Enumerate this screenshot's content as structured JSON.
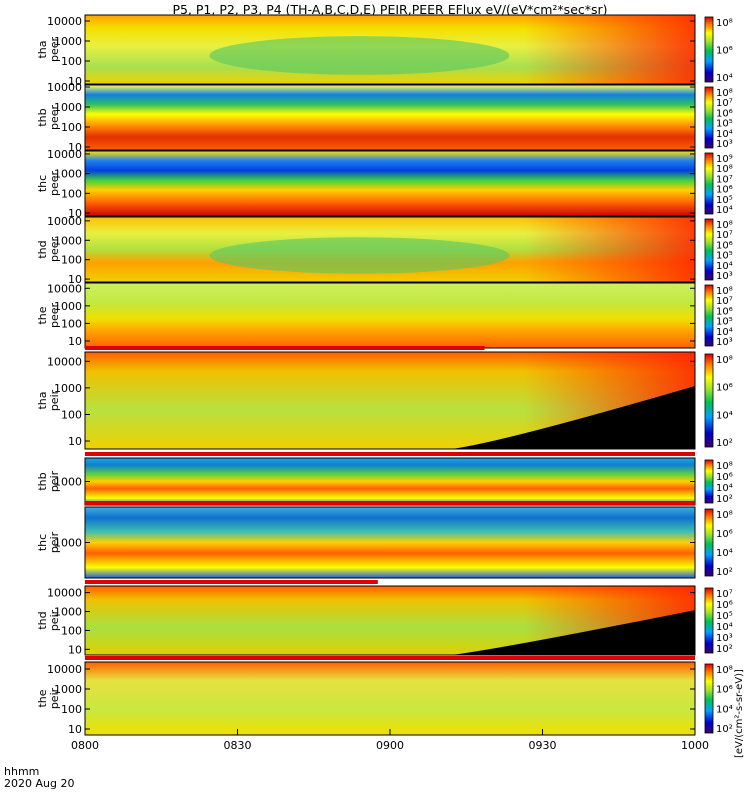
{
  "chart_data": {
    "type": "heatmap",
    "title": "P5, P1, P2, P3, P4 (TH-A,B,C,D,E) PEIR,PEER EFlux eV/(eV*cm²*sec*sr)",
    "x_axis": {
      "ticks": [
        "0800",
        "0830",
        "0900",
        "0930",
        "1000"
      ],
      "range_hours": [
        8.0,
        10.0
      ],
      "corner_label": "hhmm",
      "date_label": "2020 Aug 20"
    },
    "colorbar_unit_label": "[eV/(cm²-s-sr-eV)]",
    "panels": [
      {
        "label_top": "tha",
        "label_bottom": "peer",
        "y_ticks": [
          "10000",
          "1000",
          "100",
          "10"
        ],
        "log_range": [
          0.85,
          4.3
        ],
        "colorbar_ticks": [
          "10⁸",
          "10⁶",
          "10⁴"
        ],
        "bar_above": false
      },
      {
        "label_top": "thb",
        "label_bottom": "peer",
        "y_ticks": [
          "10000",
          "1000",
          "100",
          "10"
        ],
        "log_range": [
          0.85,
          4.1
        ],
        "colorbar_ticks": [
          "10⁸",
          "10⁷",
          "10⁶",
          "10⁵",
          "10⁴",
          "10³"
        ],
        "bar_above": false
      },
      {
        "label_top": "thc",
        "label_bottom": "peer",
        "y_ticks": [
          "10000",
          "1000",
          "100",
          "10"
        ],
        "log_range": [
          0.85,
          4.15
        ],
        "colorbar_ticks": [
          "10⁹",
          "10⁸",
          "10⁷",
          "10⁶",
          "10⁵",
          "10⁴"
        ],
        "bar_above": false
      },
      {
        "label_top": "thd",
        "label_bottom": "peer",
        "y_ticks": [
          "10000",
          "1000",
          "100",
          "10"
        ],
        "log_range": [
          0.85,
          4.2
        ],
        "colorbar_ticks": [
          "10⁸",
          "10⁷",
          "10⁶",
          "10⁵",
          "10⁴",
          "10³"
        ],
        "bar_above": false
      },
      {
        "label_top": "the",
        "label_bottom": "peer",
        "y_ticks": [
          "10000",
          "1000",
          "100",
          "10"
        ],
        "log_range": [
          0.6,
          4.3
        ],
        "colorbar_ticks": [
          "10⁸",
          "10⁷",
          "10⁶",
          "10⁵",
          "10⁴",
          "10³"
        ],
        "bar_above": false
      },
      {
        "label_top": "tha",
        "label_bottom": "peir",
        "y_ticks": [
          "10000",
          "1000",
          "100",
          "10"
        ],
        "log_range": [
          0.7,
          4.35
        ],
        "colorbar_ticks": [
          "10⁸",
          "10⁶",
          "10⁴",
          "10²"
        ],
        "bar_above": true,
        "bar_end_hours": 9.31
      },
      {
        "label_top": "thb",
        "label_bottom": "peir",
        "y_ticks": [
          "1000"
        ],
        "log_range": [
          2.4,
          3.6
        ],
        "colorbar_ticks": [
          "10⁸",
          "10⁶",
          "10⁴",
          "10²"
        ],
        "bar_above": true,
        "bar_end_hours": 10.0
      },
      {
        "label_top": "thc",
        "label_bottom": "peir",
        "y_ticks": [
          "1000"
        ],
        "log_range": [
          2.4,
          3.6
        ],
        "colorbar_ticks": [
          "10⁸",
          "10⁶",
          "10⁴",
          "10²"
        ],
        "bar_above": true,
        "bar_end_hours": 10.0
      },
      {
        "label_top": "thd",
        "label_bottom": "peir",
        "y_ticks": [
          "10000",
          "1000",
          "100",
          "10"
        ],
        "log_range": [
          0.7,
          4.35
        ],
        "colorbar_ticks": [
          "10⁷",
          "10⁶",
          "10⁵",
          "10⁴",
          "10³",
          "10²"
        ],
        "bar_above": true,
        "bar_end_hours": 8.96
      },
      {
        "label_top": "the",
        "label_bottom": "peir",
        "y_ticks": [
          "10000",
          "1000",
          "100",
          "10"
        ],
        "log_range": [
          0.7,
          4.35
        ],
        "colorbar_ticks": [
          "10⁸",
          "10⁶",
          "10⁴",
          "10²"
        ],
        "bar_above": true,
        "bar_end_hours": 10.0
      }
    ]
  }
}
